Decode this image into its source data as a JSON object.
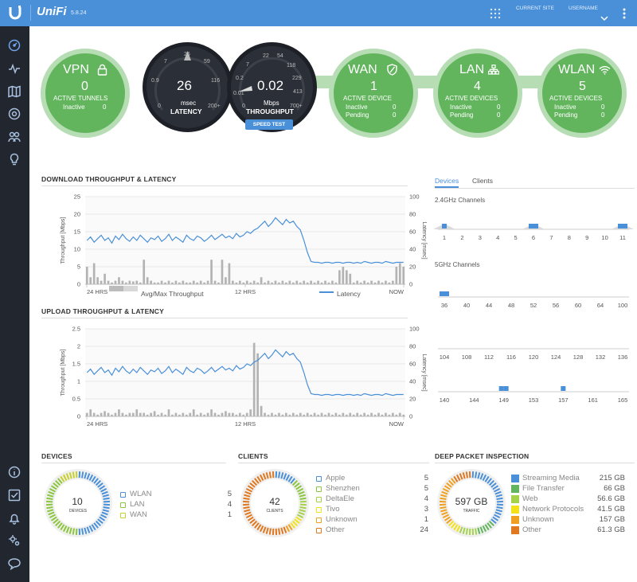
{
  "header": {
    "logo_text": "UniFi",
    "version": "5.8.24",
    "site_label": "CURRENT SITE",
    "username_label": "USERNAME"
  },
  "sidebar": {
    "items": [
      "dashboard-icon",
      "statistics-icon",
      "map-icon",
      "devices-icon",
      "clients-icon",
      "insights-icon"
    ],
    "bottom_items": [
      "info-icon",
      "tasks-icon",
      "alerts-icon",
      "settings-icon",
      "chat-icon"
    ]
  },
  "status": {
    "vpn": {
      "title": "VPN",
      "value": "0",
      "caption": "ACTIVE TUNNELS",
      "inactive_label": "Inactive",
      "inactive": "0"
    },
    "latency": {
      "value": "26",
      "unit": "msec",
      "label": "LATENCY",
      "ticks": [
        "0",
        "0.9",
        "7",
        "26",
        "59",
        "116",
        "200+"
      ]
    },
    "throughput": {
      "value": "0.02",
      "unit": "Mbps",
      "label": "THROUGHPUT",
      "ticks": [
        "0",
        "0.01",
        "0.2",
        "7",
        "22",
        "54",
        "118",
        "229",
        "413",
        "700+"
      ]
    },
    "speed_test": "SPEED TEST",
    "wan": {
      "title": "WAN",
      "value": "1",
      "caption": "ACTIVE DEVICE",
      "inactive_label": "Inactive",
      "inactive": "0",
      "pending_label": "Pending",
      "pending": "0"
    },
    "lan": {
      "title": "LAN",
      "value": "4",
      "caption": "ACTIVE DEVICES",
      "inactive_label": "Inactive",
      "inactive": "0",
      "pending_label": "Pending",
      "pending": "0"
    },
    "wlan": {
      "title": "WLAN",
      "value": "5",
      "caption": "ACTIVE DEVICES",
      "inactive_label": "Inactive",
      "inactive": "0",
      "pending_label": "Pending",
      "pending": "0"
    }
  },
  "charts": {
    "download_title": "DOWNLOAD THROUGHPUT & LATENCY",
    "upload_title": "UPLOAD THROUGHPUT & LATENCY",
    "legend_bars": "Avg/Max Throughput",
    "legend_line": "Latency"
  },
  "chart_data": [
    {
      "type": "line",
      "title": "DOWNLOAD THROUGHPUT & LATENCY",
      "ylabel": "Throughput [Mbps]",
      "y2label": "Latency [msec]",
      "x_ticks": [
        "24 HRS",
        "12 HRS",
        "NOW"
      ],
      "ylim": [
        0,
        25
      ],
      "y_ticks": [
        "0",
        "5",
        "10",
        "15",
        "20",
        "25"
      ],
      "y2lim": [
        0,
        100
      ],
      "y2_ticks": [
        "0",
        "20",
        "40",
        "60",
        "80",
        "100"
      ],
      "series": [
        {
          "name": "Latency",
          "axis": "right",
          "values": [
            50,
            54,
            48,
            52,
            56,
            50,
            53,
            47,
            55,
            51,
            57,
            52,
            49,
            54,
            50,
            56,
            52,
            48,
            53,
            51,
            55,
            49,
            52,
            57,
            50,
            54,
            51,
            48,
            56,
            52,
            50,
            55,
            53,
            49,
            52,
            56,
            51,
            54,
            57,
            53,
            55,
            52,
            58,
            54,
            56,
            60,
            58,
            62,
            64,
            68,
            72,
            66,
            70,
            76,
            72,
            68,
            74,
            70,
            72,
            66,
            62,
            50,
            36,
            26,
            25,
            25,
            24,
            25,
            25,
            24,
            25,
            25,
            24,
            25,
            25,
            24,
            25,
            24,
            26,
            25,
            24,
            25,
            25,
            24,
            26,
            25,
            24,
            25,
            25,
            25
          ]
        },
        {
          "name": "Avg/Max Throughput",
          "axis": "left",
          "values": [
            5,
            2,
            6,
            2,
            1,
            3,
            1,
            0.5,
            1,
            2,
            1,
            0.5,
            1,
            0.8,
            1,
            0.5,
            7,
            2,
            1,
            0.5,
            0.5,
            1,
            0.5,
            1,
            0.5,
            1,
            0.5,
            1,
            0.5,
            0.5,
            1,
            0.5,
            1,
            0.5,
            1,
            7,
            1,
            0.5,
            7,
            2,
            6,
            1,
            0.5,
            1,
            0.5,
            1,
            0.5,
            1,
            0.5,
            2,
            0.5,
            1,
            0.5,
            1,
            0.5,
            1,
            0.5,
            1,
            0.5,
            1,
            0.5,
            1,
            0.5,
            1,
            0.5,
            1,
            0.5,
            1,
            0.5,
            1,
            0.5,
            4,
            5,
            4,
            3,
            0.5,
            1,
            0.5,
            1,
            0.5,
            1,
            0.5,
            1,
            0.5,
            1,
            0.5,
            1,
            5,
            6,
            5
          ]
        }
      ]
    },
    {
      "type": "line",
      "title": "UPLOAD THROUGHPUT & LATENCY",
      "ylabel": "Throughput [Mbps]",
      "y2label": "Latency [msec]",
      "x_ticks": [
        "24 HRS",
        "12 HRS",
        "NOW"
      ],
      "ylim": [
        0,
        2.5
      ],
      "y_ticks": [
        "0",
        "0.5",
        "1",
        "1.5",
        "2",
        "2.5"
      ],
      "y2lim": [
        0,
        100
      ],
      "y2_ticks": [
        "0",
        "20",
        "40",
        "60",
        "80",
        "100"
      ],
      "series": [
        {
          "name": "Latency",
          "axis": "right",
          "values": [
            50,
            54,
            48,
            52,
            56,
            50,
            53,
            47,
            55,
            51,
            57,
            52,
            49,
            54,
            50,
            56,
            52,
            48,
            53,
            51,
            55,
            49,
            52,
            57,
            50,
            54,
            51,
            48,
            56,
            52,
            50,
            55,
            53,
            49,
            52,
            56,
            51,
            54,
            57,
            53,
            55,
            52,
            58,
            54,
            56,
            60,
            58,
            62,
            64,
            68,
            72,
            66,
            70,
            76,
            72,
            68,
            74,
            70,
            72,
            66,
            62,
            50,
            36,
            26,
            25,
            25,
            24,
            25,
            25,
            24,
            25,
            25,
            24,
            25,
            25,
            24,
            25,
            24,
            26,
            25,
            24,
            25,
            25,
            24,
            26,
            25,
            24,
            25,
            25,
            25
          ]
        },
        {
          "name": "Avg/Max Throughput",
          "axis": "left",
          "values": [
            0.1,
            0.2,
            0.1,
            0.05,
            0.1,
            0.15,
            0.1,
            0.05,
            0.1,
            0.2,
            0.1,
            0.05,
            0.1,
            0.1,
            0.2,
            0.1,
            0.1,
            0.05,
            0.1,
            0.15,
            0.05,
            0.1,
            0.05,
            0.2,
            0.05,
            0.1,
            0.05,
            0.1,
            0.05,
            0.1,
            0.2,
            0.05,
            0.1,
            0.05,
            0.1,
            0.2,
            0.1,
            0.05,
            0.1,
            0.15,
            0.1,
            0.1,
            0.05,
            0.1,
            0.05,
            0.1,
            0.2,
            2.1,
            1.8,
            0.3,
            0.1,
            0.05,
            0.1,
            0.05,
            0.1,
            0.05,
            0.1,
            0.05,
            0.1,
            0.05,
            0.1,
            0.05,
            0.1,
            0.05,
            0.1,
            0.05,
            0.1,
            0.05,
            0.1,
            0.05,
            0.1,
            0.05,
            0.1,
            0.05,
            0.1,
            0.05,
            0.1,
            0.05,
            0.1,
            0.05,
            0.1,
            0.05,
            0.1,
            0.05,
            0.1,
            0.05,
            0.1,
            0.05,
            0.1,
            0.05
          ]
        }
      ]
    }
  ],
  "channels": {
    "tabs": [
      "Devices",
      "Clients"
    ],
    "band24_label": "2.4GHz Channels",
    "band24": [
      "1",
      "2",
      "3",
      "4",
      "5",
      "6",
      "7",
      "8",
      "9",
      "10",
      "11"
    ],
    "band5_label": "5GHz Channels",
    "band5_row1": [
      "36",
      "40",
      "44",
      "48",
      "52",
      "56",
      "60",
      "64",
      "100"
    ],
    "band5_row2": [
      "104",
      "108",
      "112",
      "116",
      "120",
      "124",
      "128",
      "132",
      "136"
    ],
    "band5_row3": [
      "140",
      "144",
      "149",
      "153",
      "157",
      "161",
      "165"
    ]
  },
  "devices": {
    "title": "DEVICES",
    "total": "10",
    "total_label": "DEVICES",
    "items": [
      {
        "label": "WLAN",
        "value": "5",
        "color": "#4a90d9"
      },
      {
        "label": "LAN",
        "value": "4",
        "color": "#8cc63e"
      },
      {
        "label": "WAN",
        "value": "1",
        "color": "#c8d02f"
      }
    ]
  },
  "clients": {
    "title": "CLIENTS",
    "total": "42",
    "total_label": "CLIENTS",
    "items": [
      {
        "label": "Apple",
        "value": "5",
        "color": "#4a90d9"
      },
      {
        "label": "Shenzhen",
        "value": "5",
        "color": "#8cc63e"
      },
      {
        "label": "DeltaEle",
        "value": "4",
        "color": "#a5d24b"
      },
      {
        "label": "Tivo",
        "value": "3",
        "color": "#f3e11c"
      },
      {
        "label": "Unknown",
        "value": "1",
        "color": "#f0a020"
      },
      {
        "label": "Other",
        "value": "24",
        "color": "#e07820"
      }
    ]
  },
  "dpi": {
    "title": "DEEP PACKET INSPECTION",
    "total": "597 GB",
    "total_label": "TRAFFIC",
    "items": [
      {
        "label": "Streaming Media",
        "value": "215 GB",
        "color": "#4a90d9"
      },
      {
        "label": "File Transfer",
        "value": "66 GB",
        "color": "#62b55d"
      },
      {
        "label": "Web",
        "value": "56.6 GB",
        "color": "#a5d24b"
      },
      {
        "label": "Network Protocols",
        "value": "41.5 GB",
        "color": "#f3e11c"
      },
      {
        "label": "Unknown",
        "value": "157 GB",
        "color": "#f0a020"
      },
      {
        "label": "Other",
        "value": "61.3 GB",
        "color": "#e07820"
      }
    ]
  }
}
